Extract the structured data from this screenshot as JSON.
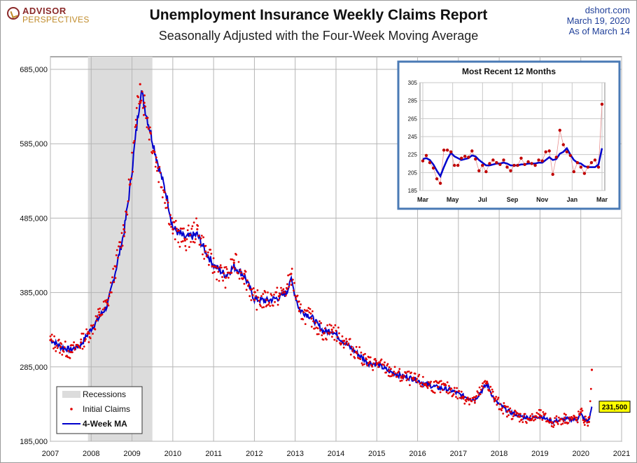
{
  "header": {
    "logo_top": "ADVISOR",
    "logo_bottom": "PERSPECTIVES",
    "title": "Unemployment Insurance Weekly Claims Report",
    "subtitle": "Seasonally Adjusted with the Four-Week Moving Average",
    "source": "dshort.com",
    "date": "March 19, 2020",
    "as_of": "As of March 14"
  },
  "colors": {
    "recession": "#dcdcdc",
    "claims": "#e00000",
    "ma": "#0000cc",
    "inset_border": "#4a7ab5",
    "callout_bg": "#ffff00"
  },
  "chart_data": [
    {
      "type": "line",
      "x_ticks": [
        "2007",
        "2008",
        "2009",
        "2010",
        "2011",
        "2012",
        "2013",
        "2014",
        "2015",
        "2016",
        "2017",
        "2018",
        "2019",
        "2020",
        "2021"
      ],
      "y_ticks": [
        "685,000",
        "585,000",
        "485,000",
        "385,000",
        "285,000",
        "185,000"
      ],
      "ylim": [
        185000,
        700000
      ],
      "xlim": [
        2007,
        2021
      ],
      "grid": true,
      "recession": {
        "label": "Recessions",
        "start": 2007.92,
        "end": 2009.5
      },
      "series": [
        {
          "name": "Initial Claims",
          "style": "dots",
          "values": [
            [
              2007.0,
              321000
            ],
            [
              2007.25,
              312000
            ],
            [
              2007.5,
              305000
            ],
            [
              2007.75,
              318000
            ],
            [
              2007.95,
              330000
            ],
            [
              2008.2,
              355000
            ],
            [
              2008.4,
              370000
            ],
            [
              2008.6,
              420000
            ],
            [
              2008.8,
              470000
            ],
            [
              2008.95,
              530000
            ],
            [
              2009.1,
              610000
            ],
            [
              2009.2,
              665000
            ],
            [
              2009.3,
              640000
            ],
            [
              2009.45,
              600000
            ],
            [
              2009.6,
              560000
            ],
            [
              2009.8,
              520000
            ],
            [
              2010.0,
              470000
            ],
            [
              2010.3,
              455000
            ],
            [
              2010.6,
              470000
            ],
            [
              2010.8,
              440000
            ],
            [
              2011.0,
              420000
            ],
            [
              2011.3,
              405000
            ],
            [
              2011.5,
              425000
            ],
            [
              2011.75,
              410000
            ],
            [
              2012.0,
              375000
            ],
            [
              2012.3,
              375000
            ],
            [
              2012.6,
              380000
            ],
            [
              2012.8,
              390000
            ],
            [
              2012.9,
              410000
            ],
            [
              2013.1,
              360000
            ],
            [
              2013.4,
              350000
            ],
            [
              2013.7,
              330000
            ],
            [
              2013.9,
              335000
            ],
            [
              2014.2,
              320000
            ],
            [
              2014.5,
              305000
            ],
            [
              2014.8,
              290000
            ],
            [
              2015.0,
              290000
            ],
            [
              2015.3,
              280000
            ],
            [
              2015.6,
              272000
            ],
            [
              2015.9,
              268000
            ],
            [
              2016.2,
              262000
            ],
            [
              2016.5,
              258000
            ],
            [
              2016.8,
              255000
            ],
            [
              2017.1,
              245000
            ],
            [
              2017.4,
              240000
            ],
            [
              2017.7,
              265000
            ],
            [
              2017.9,
              240000
            ],
            [
              2018.2,
              225000
            ],
            [
              2018.5,
              218000
            ],
            [
              2018.8,
              215000
            ],
            [
              2019.0,
              220000
            ],
            [
              2019.3,
              210000
            ],
            [
              2019.6,
              216000
            ],
            [
              2019.9,
              214000
            ],
            [
              2020.0,
              224000
            ],
            [
              2020.1,
              212000
            ],
            [
              2020.2,
              211000
            ],
            [
              2020.27,
              281000
            ]
          ]
        },
        {
          "name": "4-Week MA",
          "style": "line",
          "values": [
            [
              2007.0,
              322000
            ],
            [
              2007.25,
              312000
            ],
            [
              2007.5,
              308000
            ],
            [
              2007.75,
              315000
            ],
            [
              2007.95,
              332000
            ],
            [
              2008.2,
              352000
            ],
            [
              2008.4,
              368000
            ],
            [
              2008.6,
              415000
            ],
            [
              2008.8,
              465000
            ],
            [
              2008.95,
              525000
            ],
            [
              2009.1,
              600000
            ],
            [
              2009.22,
              658000
            ],
            [
              2009.35,
              625000
            ],
            [
              2009.5,
              590000
            ],
            [
              2009.65,
              555000
            ],
            [
              2009.85,
              515000
            ],
            [
              2010.0,
              472000
            ],
            [
              2010.3,
              458000
            ],
            [
              2010.6,
              463000
            ],
            [
              2010.8,
              440000
            ],
            [
              2011.0,
              422000
            ],
            [
              2011.3,
              408000
            ],
            [
              2011.5,
              420000
            ],
            [
              2011.75,
              408000
            ],
            [
              2012.0,
              376000
            ],
            [
              2012.3,
              374000
            ],
            [
              2012.6,
              378000
            ],
            [
              2012.8,
              385000
            ],
            [
              2012.88,
              405000
            ],
            [
              2013.1,
              362000
            ],
            [
              2013.4,
              352000
            ],
            [
              2013.7,
              332000
            ],
            [
              2013.9,
              334000
            ],
            [
              2014.2,
              318000
            ],
            [
              2014.5,
              304000
            ],
            [
              2014.8,
              290000
            ],
            [
              2015.0,
              289000
            ],
            [
              2015.3,
              279000
            ],
            [
              2015.6,
              273000
            ],
            [
              2015.9,
              269000
            ],
            [
              2016.2,
              262000
            ],
            [
              2016.5,
              257000
            ],
            [
              2016.8,
              254000
            ],
            [
              2017.1,
              246000
            ],
            [
              2017.4,
              241000
            ],
            [
              2017.7,
              262000
            ],
            [
              2017.9,
              239000
            ],
            [
              2018.2,
              226000
            ],
            [
              2018.5,
              219000
            ],
            [
              2018.8,
              216000
            ],
            [
              2019.0,
              219000
            ],
            [
              2019.3,
              211000
            ],
            [
              2019.6,
              215000
            ],
            [
              2019.9,
              214000
            ],
            [
              2020.0,
              222000
            ],
            [
              2020.1,
              213000
            ],
            [
              2020.2,
              213000
            ],
            [
              2020.27,
              231500
            ]
          ]
        }
      ],
      "legend": {
        "position": "bottom-left",
        "items": [
          "Recessions",
          "Initial Claims",
          "4-Week MA"
        ]
      },
      "callout": {
        "label": "231,500",
        "value": 231500
      }
    },
    {
      "type": "line",
      "title": "Most Recent 12 Months",
      "x_ticks": [
        "Mar",
        "May",
        "Jul",
        "Sep",
        "Nov",
        "Jan",
        "Mar"
      ],
      "y_ticks": [
        "305",
        "285",
        "265",
        "245",
        "225",
        "205",
        "185"
      ],
      "ylim": [
        185,
        305
      ],
      "grid": true,
      "series": [
        {
          "name": "Initial Claims",
          "style": "dots-line",
          "values": [
            218,
            224,
            216,
            210,
            198,
            193,
            230,
            230,
            228,
            213,
            213,
            221,
            223,
            222,
            229,
            220,
            207,
            213,
            206,
            215,
            219,
            216,
            214,
            219,
            211,
            207,
            213,
            213,
            221,
            214,
            217,
            215,
            213,
            219,
            218,
            228,
            229,
            203,
            222,
            252,
            236,
            228,
            224,
            206,
            216,
            211,
            204,
            211,
            216,
            219,
            211,
            281
          ]
        },
        {
          "name": "4-Week MA",
          "style": "line",
          "values": [
            220,
            221,
            219,
            214,
            207,
            201,
            211,
            220,
            227,
            223,
            221,
            219,
            220,
            221,
            224,
            223,
            219,
            216,
            213,
            213,
            214,
            215,
            215,
            216,
            215,
            213,
            213,
            213,
            214,
            214,
            215,
            215,
            215,
            216,
            216,
            219,
            222,
            219,
            220,
            226,
            228,
            232,
            225,
            219,
            216,
            215,
            212,
            211,
            211,
            211,
            214,
            232
          ]
        }
      ]
    }
  ]
}
